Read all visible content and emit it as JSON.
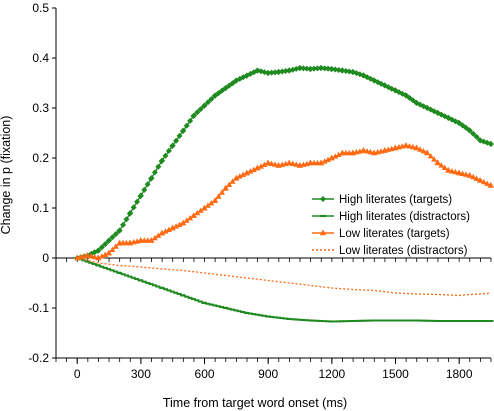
{
  "chart_data": {
    "type": "line",
    "xlabel": "Time from target word onset (ms)",
    "ylabel": "Change in  p  (fixation)",
    "xlim": [
      -100,
      1950
    ],
    "ylim": [
      -0.2,
      0.5
    ],
    "x_ticks": [
      0,
      300,
      600,
      900,
      1200,
      1500,
      1800
    ],
    "y_ticks": [
      -0.2,
      -0.1,
      0,
      0.1,
      0.2,
      0.3,
      0.4,
      0.5
    ],
    "y_tick_labels": [
      "-0.2",
      "-0.1",
      "0",
      "0.1",
      "0.2",
      "0.3",
      "0.4",
      "0.5"
    ],
    "grid": false,
    "legend_position": "right",
    "colors": {
      "green": "#1f8a1f",
      "orange": "#ff6a13"
    },
    "series": [
      {
        "name": "High literates (targets)",
        "color": "#1f8a1f",
        "marker": "diamond",
        "line": "solid",
        "points": [
          [
            0,
            0
          ],
          [
            50,
            0.005
          ],
          [
            100,
            0.015
          ],
          [
            150,
            0.035
          ],
          [
            200,
            0.055
          ],
          [
            250,
            0.09
          ],
          [
            300,
            0.125
          ],
          [
            350,
            0.16
          ],
          [
            400,
            0.195
          ],
          [
            450,
            0.225
          ],
          [
            500,
            0.255
          ],
          [
            550,
            0.285
          ],
          [
            600,
            0.305
          ],
          [
            650,
            0.325
          ],
          [
            700,
            0.34
          ],
          [
            750,
            0.355
          ],
          [
            800,
            0.365
          ],
          [
            850,
            0.375
          ],
          [
            900,
            0.37
          ],
          [
            950,
            0.372
          ],
          [
            1000,
            0.375
          ],
          [
            1050,
            0.38
          ],
          [
            1100,
            0.378
          ],
          [
            1150,
            0.38
          ],
          [
            1200,
            0.378
          ],
          [
            1250,
            0.375
          ],
          [
            1300,
            0.372
          ],
          [
            1350,
            0.365
          ],
          [
            1400,
            0.355
          ],
          [
            1450,
            0.345
          ],
          [
            1500,
            0.335
          ],
          [
            1550,
            0.325
          ],
          [
            1600,
            0.31
          ],
          [
            1650,
            0.3
          ],
          [
            1700,
            0.29
          ],
          [
            1750,
            0.28
          ],
          [
            1800,
            0.27
          ],
          [
            1850,
            0.255
          ],
          [
            1900,
            0.235
          ],
          [
            1950,
            0.228
          ]
        ]
      },
      {
        "name": "High literates (distractors)",
        "color": "#1f8a1f",
        "marker": "dash",
        "line": "solid",
        "points": [
          [
            0,
            0
          ],
          [
            100,
            -0.015
          ],
          [
            200,
            -0.03
          ],
          [
            300,
            -0.045
          ],
          [
            400,
            -0.06
          ],
          [
            500,
            -0.075
          ],
          [
            600,
            -0.09
          ],
          [
            700,
            -0.1
          ],
          [
            800,
            -0.11
          ],
          [
            900,
            -0.117
          ],
          [
            1000,
            -0.122
          ],
          [
            1100,
            -0.125
          ],
          [
            1200,
            -0.127
          ],
          [
            1300,
            -0.126
          ],
          [
            1400,
            -0.125
          ],
          [
            1500,
            -0.125
          ],
          [
            1600,
            -0.125
          ],
          [
            1700,
            -0.126
          ],
          [
            1800,
            -0.126
          ],
          [
            1950,
            -0.126
          ]
        ]
      },
      {
        "name": "Low literates (targets)",
        "color": "#ff6a13",
        "marker": "triangle",
        "line": "solid",
        "points": [
          [
            0,
            0
          ],
          [
            50,
            0.005
          ],
          [
            100,
            0.0
          ],
          [
            150,
            0.01
          ],
          [
            200,
            0.03
          ],
          [
            250,
            0.03
          ],
          [
            300,
            0.035
          ],
          [
            350,
            0.035
          ],
          [
            400,
            0.05
          ],
          [
            450,
            0.06
          ],
          [
            500,
            0.07
          ],
          [
            550,
            0.085
          ],
          [
            600,
            0.1
          ],
          [
            650,
            0.115
          ],
          [
            700,
            0.14
          ],
          [
            750,
            0.16
          ],
          [
            800,
            0.17
          ],
          [
            850,
            0.18
          ],
          [
            900,
            0.19
          ],
          [
            950,
            0.185
          ],
          [
            1000,
            0.19
          ],
          [
            1050,
            0.185
          ],
          [
            1100,
            0.19
          ],
          [
            1150,
            0.19
          ],
          [
            1200,
            0.2
          ],
          [
            1250,
            0.21
          ],
          [
            1300,
            0.21
          ],
          [
            1350,
            0.215
          ],
          [
            1400,
            0.21
          ],
          [
            1450,
            0.215
          ],
          [
            1500,
            0.22
          ],
          [
            1550,
            0.225
          ],
          [
            1600,
            0.22
          ],
          [
            1650,
            0.21
          ],
          [
            1700,
            0.19
          ],
          [
            1750,
            0.175
          ],
          [
            1800,
            0.17
          ],
          [
            1850,
            0.165
          ],
          [
            1900,
            0.155
          ],
          [
            1950,
            0.145
          ]
        ]
      },
      {
        "name": "Low literates (distractors)",
        "color": "#ff6a13",
        "marker": "none",
        "line": "dotted",
        "points": [
          [
            0,
            0
          ],
          [
            100,
            -0.01
          ],
          [
            200,
            -0.015
          ],
          [
            300,
            -0.018
          ],
          [
            400,
            -0.022
          ],
          [
            500,
            -0.025
          ],
          [
            600,
            -0.03
          ],
          [
            700,
            -0.035
          ],
          [
            800,
            -0.04
          ],
          [
            900,
            -0.045
          ],
          [
            1000,
            -0.05
          ],
          [
            1100,
            -0.055
          ],
          [
            1200,
            -0.06
          ],
          [
            1300,
            -0.063
          ],
          [
            1400,
            -0.065
          ],
          [
            1500,
            -0.07
          ],
          [
            1600,
            -0.072
          ],
          [
            1700,
            -0.073
          ],
          [
            1800,
            -0.075
          ],
          [
            1850,
            -0.073
          ],
          [
            1900,
            -0.072
          ],
          [
            1950,
            -0.07
          ]
        ]
      }
    ]
  }
}
